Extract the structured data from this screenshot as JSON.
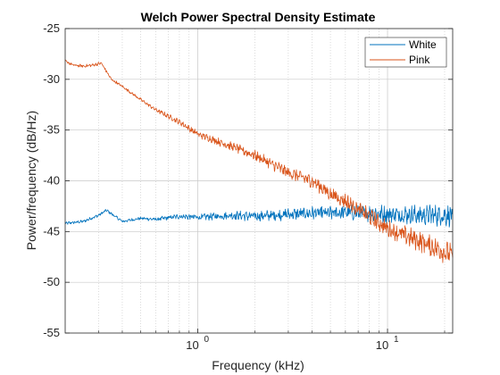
{
  "chart_data": {
    "type": "line",
    "title": "Welch Power Spectral Density Estimate",
    "xlabel": "Frequency (kHz)",
    "ylabel": "Power/frequency (dB/Hz)",
    "x_scale": "log",
    "xlim": [
      0.2,
      22.05
    ],
    "ylim": [
      -55,
      -25
    ],
    "yticks": [
      "-25",
      "-30",
      "-35",
      "-40",
      "-45",
      "-50",
      "-55"
    ],
    "xticks": [
      {
        "base": "10",
        "exp": "0"
      },
      {
        "base": "10",
        "exp": "1"
      }
    ],
    "grid": true,
    "minor_grid": true,
    "legend_position": "top-right",
    "series": [
      {
        "name": "White",
        "color": "#0072BD",
        "x": [
          0.2,
          0.25,
          0.3,
          0.33,
          0.4,
          0.5,
          0.6,
          0.8,
          1,
          1.5,
          2,
          3,
          4,
          5,
          6,
          8,
          10,
          12,
          15,
          20,
          22.05
        ],
        "y": [
          -44.2,
          -44.0,
          -43.4,
          -42.9,
          -44.0,
          -43.7,
          -43.8,
          -43.5,
          -43.6,
          -43.4,
          -43.5,
          -43.3,
          -43.2,
          -43.2,
          -43.1,
          -43.2,
          -43.3,
          -43.3,
          -43.4,
          -43.4,
          -43.4
        ]
      },
      {
        "name": "Pink",
        "color": "#D95319",
        "x": [
          0.2,
          0.22,
          0.25,
          0.28,
          0.31,
          0.35,
          0.4,
          0.5,
          0.6,
          0.8,
          1,
          1.5,
          2,
          3,
          4,
          5,
          6,
          8,
          10,
          12,
          15,
          20,
          22.05
        ],
        "y": [
          -28.2,
          -28.6,
          -28.7,
          -28.6,
          -28.4,
          -30.0,
          -30.7,
          -32.0,
          -33.0,
          -34.2,
          -35.4,
          -36.6,
          -37.5,
          -39.2,
          -40.0,
          -41.3,
          -42.0,
          -43.5,
          -44.7,
          -45.3,
          -46.0,
          -47.0,
          -47.3
        ]
      }
    ]
  }
}
